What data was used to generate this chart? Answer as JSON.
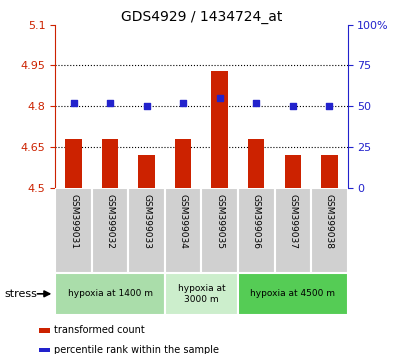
{
  "title": "GDS4929 / 1434724_at",
  "samples": [
    "GSM399031",
    "GSM399032",
    "GSM399033",
    "GSM399034",
    "GSM399035",
    "GSM399036",
    "GSM399037",
    "GSM399038"
  ],
  "bar_values": [
    4.68,
    4.68,
    4.62,
    4.68,
    4.93,
    4.68,
    4.62,
    4.62
  ],
  "percentile_values": [
    52,
    52,
    50,
    52,
    55,
    52,
    50,
    50
  ],
  "ylim_left": [
    4.5,
    5.1
  ],
  "ylim_right": [
    0,
    100
  ],
  "yticks_left": [
    4.5,
    4.65,
    4.8,
    4.95,
    5.1
  ],
  "yticks_right": [
    0,
    25,
    50,
    75,
    100
  ],
  "bar_color": "#cc2200",
  "dot_color": "#2222cc",
  "bar_bottom": 4.5,
  "grid_values": [
    4.65,
    4.8,
    4.95
  ],
  "groups": [
    {
      "label": "hypoxia at 1400 m",
      "start": 0,
      "end": 3,
      "color": "#aaddaa"
    },
    {
      "label": "hypoxia at\n3000 m",
      "start": 3,
      "end": 5,
      "color": "#cceecc"
    },
    {
      "label": "hypoxia at 4500 m",
      "start": 5,
      "end": 8,
      "color": "#55cc55"
    }
  ],
  "stress_label": "stress",
  "legend_bar_label": "transformed count",
  "legend_dot_label": "percentile rank within the sample",
  "tick_color_left": "#cc2200",
  "tick_color_right": "#2222cc",
  "sample_bg_color": "#d0d0d0",
  "sample_border_color": "#ffffff",
  "chart_bg_color": "#ffffff"
}
